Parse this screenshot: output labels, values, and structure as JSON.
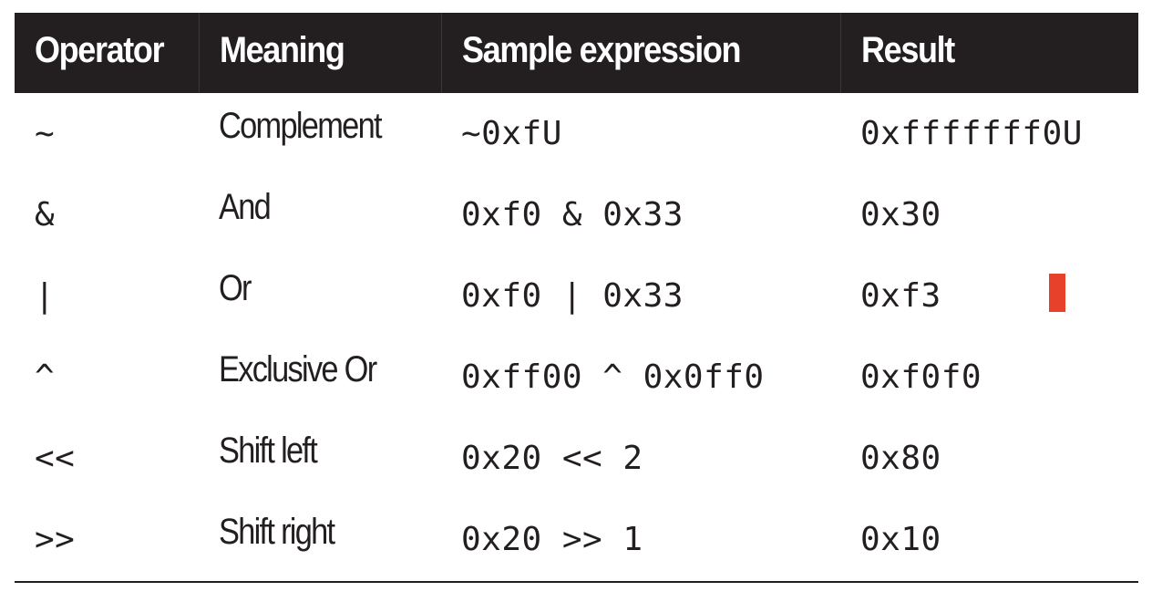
{
  "table": {
    "headers": [
      "Operator",
      "Meaning",
      "Sample expression",
      "Result"
    ],
    "rows": [
      {
        "operator": "~",
        "meaning": "Complement",
        "expression": "~0xfU",
        "result": "0xfffffff0U"
      },
      {
        "operator": "&",
        "meaning": "And",
        "expression": "0xf0 & 0x33",
        "result": "0x30"
      },
      {
        "operator": "|",
        "meaning": "Or",
        "expression": "0xf0 | 0x33",
        "result": "0xf3"
      },
      {
        "operator": "^",
        "meaning": "Exclusive Or",
        "expression": "0xff00 ^ 0x0ff0",
        "result": "0xf0f0"
      },
      {
        "operator": "<<",
        "meaning": "Shift left",
        "expression": "0x20 << 2",
        "result": "0x80"
      },
      {
        "operator": ">>",
        "meaning": "Shift right",
        "expression": "0x20 >> 1",
        "result": "0x10"
      }
    ]
  },
  "colors": {
    "header_background": "#231f20",
    "header_text": "#ffffff",
    "body_text": "#231f20",
    "marker": "#e8412b"
  }
}
